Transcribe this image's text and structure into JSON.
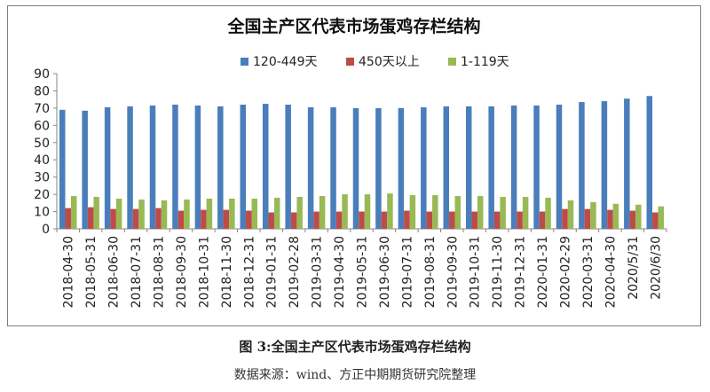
{
  "chart_data": {
    "type": "bar",
    "title": "全国主产区代表市场蛋鸡存栏结构",
    "xlabel": "",
    "ylabel": "",
    "ylim": [
      0,
      90
    ],
    "yticks": [
      0,
      10,
      20,
      30,
      40,
      50,
      60,
      70,
      80,
      90
    ],
    "grid": false,
    "legend_position": "top",
    "categories": [
      "2018-04-30",
      "2018-05-31",
      "2018-06-30",
      "2018-07-31",
      "2018-08-31",
      "2018-09-30",
      "2018-10-31",
      "2018-11-30",
      "2018-12-31",
      "2019-01-31",
      "2019-02-28",
      "2019-03-31",
      "2019-04-30",
      "2019-05-31",
      "2019-06-30",
      "2019-07-31",
      "2019-08-31",
      "2019-09-30",
      "2019-10-31",
      "2019-11-30",
      "2019-12-31",
      "2020-01-31",
      "2020-02-29",
      "2020-03-31",
      "2020-04-30",
      "2020/5/31",
      "2020/6/30"
    ],
    "series": [
      {
        "name": "120-449天",
        "color": "#4a7ebb",
        "values": [
          69,
          68.5,
          70.5,
          71,
          71.5,
          72,
          71.5,
          71,
          72,
          72.5,
          72,
          70.5,
          70.5,
          70,
          70,
          70,
          70.5,
          71,
          71,
          71,
          71.5,
          71.5,
          72,
          73.5,
          74,
          75.5,
          77
        ]
      },
      {
        "name": "450天以上",
        "color": "#be4b48",
        "values": [
          12,
          12.5,
          11.5,
          11.5,
          12,
          10.5,
          11,
          11,
          10.5,
          9.5,
          9.5,
          10,
          10,
          10,
          10,
          10.5,
          10,
          10,
          10,
          10,
          10,
          10,
          11.5,
          11.5,
          11,
          10.5,
          9.5
        ]
      },
      {
        "name": "1-119天",
        "color": "#98b954",
        "values": [
          19,
          18.5,
          17.5,
          17,
          16.5,
          17,
          17.5,
          17.5,
          17.5,
          18,
          18.5,
          19,
          20,
          20,
          20.5,
          19.5,
          19.5,
          19,
          19,
          18.5,
          18.5,
          18,
          16.5,
          15.5,
          14.5,
          14,
          13
        ]
      }
    ]
  },
  "caption": "图 3:全国主产区代表市场蛋鸡存栏结构",
  "source": "数据来源：wind、方正中期期货研究院整理"
}
